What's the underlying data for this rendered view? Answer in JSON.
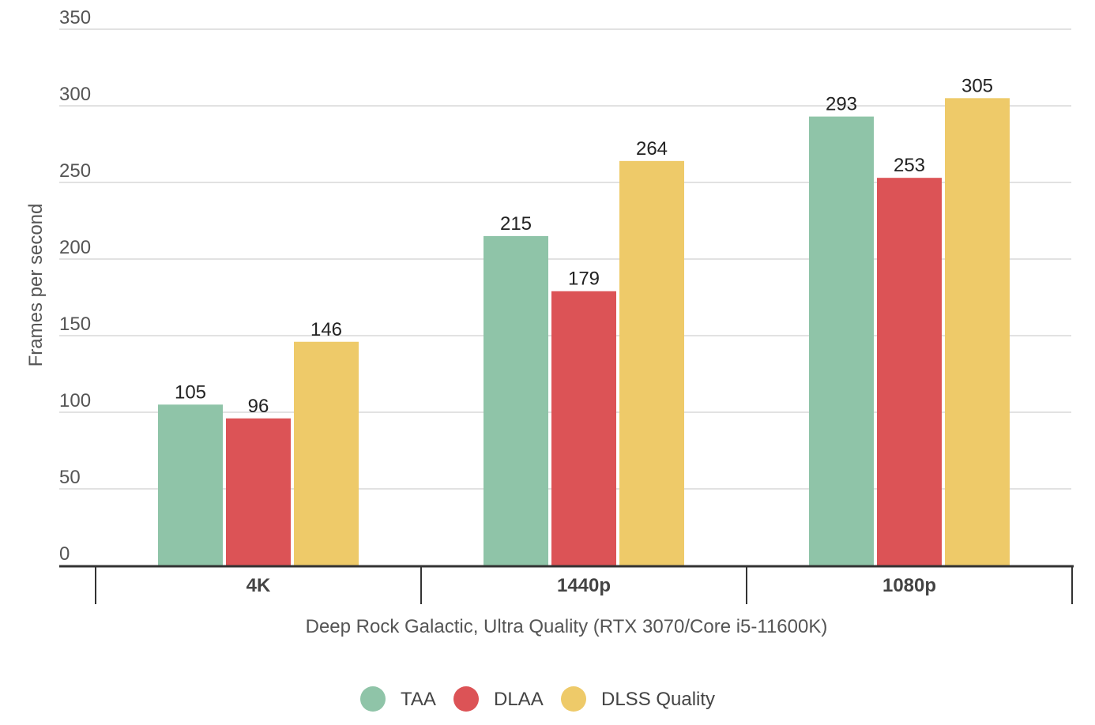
{
  "chart_data": {
    "type": "bar",
    "title": "",
    "xlabel": "Deep Rock Galactic, Ultra Quality (RTX 3070/Core i5-11600K)",
    "ylabel": "Frames per second",
    "ylim": [
      0,
      350
    ],
    "yticks": [
      0,
      50,
      100,
      150,
      200,
      250,
      300,
      350
    ],
    "grid": true,
    "legend_position": "bottom",
    "categories": [
      "4K",
      "1440p",
      "1080p"
    ],
    "series": [
      {
        "name": "TAA",
        "color": "#8fc4a8",
        "values": [
          105,
          215,
          293
        ]
      },
      {
        "name": "DLAA",
        "color": "#dc5356",
        "values": [
          96,
          179,
          253
        ]
      },
      {
        "name": "DLSS Quality",
        "color": "#eeca69",
        "values": [
          146,
          264,
          305
        ]
      }
    ]
  }
}
